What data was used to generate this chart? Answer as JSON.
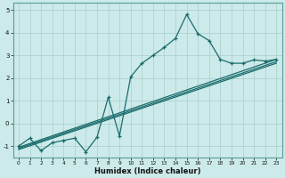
{
  "xlabel": "Humidex (Indice chaleur)",
  "xlim": [
    -0.5,
    23.5
  ],
  "ylim": [
    -1.5,
    5.3
  ],
  "x_ticks": [
    0,
    1,
    2,
    3,
    4,
    5,
    6,
    7,
    8,
    9,
    10,
    11,
    12,
    13,
    14,
    15,
    16,
    17,
    18,
    19,
    20,
    21,
    22,
    23
  ],
  "y_ticks": [
    -1,
    0,
    1,
    2,
    3,
    4,
    5
  ],
  "bg_color": "#cceaea",
  "line_color": "#1a6b6b",
  "grid_color": "#aacccc",
  "main_line_x": [
    0,
    1,
    2,
    3,
    4,
    5,
    6,
    7,
    8,
    9,
    10,
    11,
    12,
    13,
    14,
    15,
    16,
    17,
    18,
    19,
    20,
    21,
    22,
    23
  ],
  "main_line_y": [
    -1.0,
    -0.65,
    -1.2,
    -0.85,
    -0.75,
    -0.65,
    -1.25,
    -0.6,
    1.15,
    -0.55,
    2.05,
    2.65,
    3.0,
    3.35,
    3.75,
    4.8,
    3.95,
    3.65,
    2.82,
    2.65,
    2.65,
    2.8,
    2.75,
    2.82
  ],
  "trend1_x": [
    0,
    23
  ],
  "trend1_y": [
    -1.05,
    2.82
  ],
  "trend2_x": [
    0,
    23
  ],
  "trend2_y": [
    -1.15,
    2.65
  ],
  "trend3_x": [
    0,
    23
  ],
  "trend3_y": [
    -1.1,
    2.72
  ]
}
